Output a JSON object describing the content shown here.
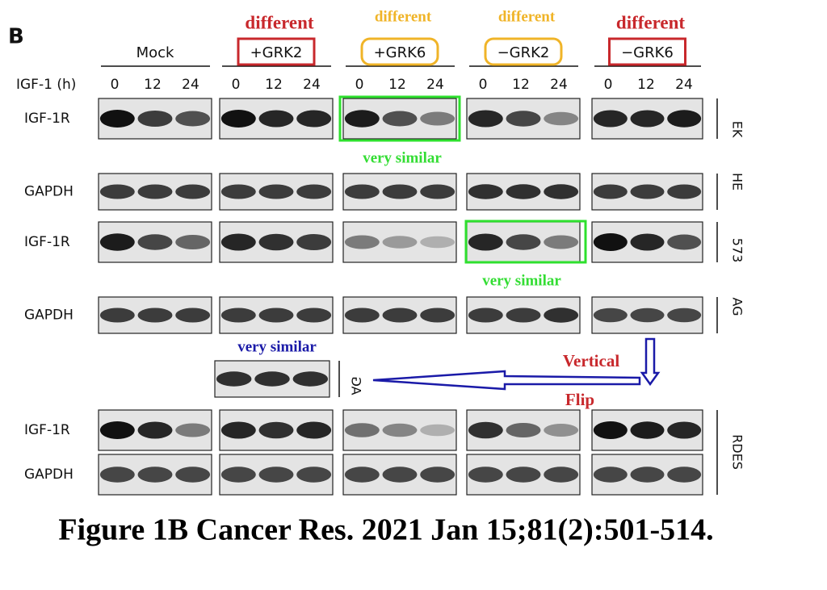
{
  "panel_label": "B",
  "time_label": "IGF-1 (h)",
  "timepoints": [
    "0",
    "12",
    "24"
  ],
  "groups": [
    {
      "name": "Mock"
    },
    {
      "name": "+GRK2",
      "annotation": "different"
    },
    {
      "name": "+GRK6",
      "annotation": "different"
    },
    {
      "name": "−GRK2",
      "annotation": "different"
    },
    {
      "name": "−GRK6",
      "annotation": "different"
    }
  ],
  "rows": [
    {
      "label": "IGF-1R"
    },
    {
      "label": "GAPDH"
    },
    {
      "label": "IGF-1R"
    },
    {
      "label": "GAPDH"
    },
    {
      "label": "IGF-1R"
    },
    {
      "label": "GAPDH"
    }
  ],
  "side_labels": [
    "EK",
    "HE",
    "573",
    "AG",
    "RDES"
  ],
  "flipped_blot_label": "AG",
  "similarity_notes": [
    "very similar",
    "very similar",
    "very similar"
  ],
  "flip_note": [
    "Vertical",
    "Flip"
  ],
  "caption": "Figure 1B Cancer Res. 2021 Jan 15;81(2):501-514."
}
